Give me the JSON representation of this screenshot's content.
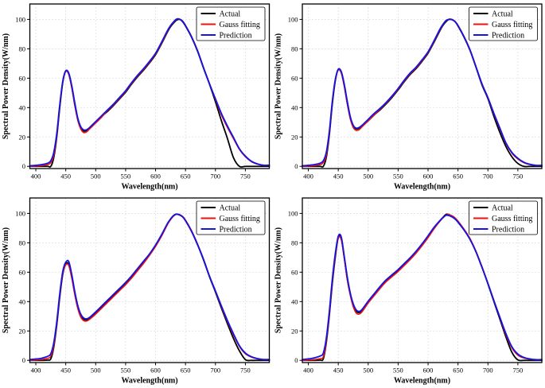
{
  "figure": {
    "xlabel": "Wavelength(nm)",
    "ylabel": "Spectral Power Density(W/nm)",
    "legend_labels": [
      "Actual",
      "Gauss fitting",
      "Prediction"
    ],
    "colors": {
      "actual": "#000000",
      "gauss_fitting": "#ee1111",
      "prediction": "#1414e6",
      "grid": "#d2d2d2",
      "frame": "#000000",
      "background": "#ffffff"
    }
  },
  "chart_data": [
    {
      "id": "top-left",
      "type": "line",
      "title": "",
      "xlabel": "Wavelength(nm)",
      "ylabel": "Spectral Power Density(W/nm)",
      "xlim": [
        390,
        790
      ],
      "ylim": [
        0,
        110
      ],
      "xticks": [
        400,
        450,
        500,
        550,
        600,
        650,
        700,
        750
      ],
      "yticks": [
        0,
        20,
        40,
        60,
        80,
        100
      ],
      "grid": true,
      "legend_position": "upper right",
      "x": [
        380,
        390,
        400,
        410,
        420,
        425,
        430,
        435,
        440,
        445,
        450,
        455,
        460,
        465,
        470,
        475,
        480,
        485,
        490,
        500,
        510,
        520,
        530,
        540,
        550,
        560,
        570,
        580,
        590,
        600,
        610,
        620,
        625,
        630,
        635,
        640,
        645,
        650,
        660,
        670,
        680,
        690,
        700,
        710,
        720,
        730,
        740,
        750,
        760,
        770,
        780
      ],
      "series": [
        {
          "name": "Actual",
          "color": "#000000",
          "values": [
            0,
            0,
            0,
            0,
            0,
            0,
            6,
            20,
            40,
            57,
            65,
            63,
            54,
            42,
            32,
            26.5,
            24,
            24.5,
            26,
            30,
            34,
            37.5,
            41.5,
            46,
            50.5,
            56,
            61,
            65.5,
            70.5,
            76,
            83.5,
            91.5,
            95,
            97.5,
            99.5,
            100,
            98.5,
            95.5,
            88,
            78.5,
            67,
            56,
            44,
            31,
            19,
            6,
            0,
            0,
            0,
            0,
            0
          ]
        },
        {
          "name": "Gauss fitting",
          "color": "#ee1111",
          "values": [
            0,
            0,
            0.2,
            0.5,
            1.2,
            2.5,
            7.5,
            21,
            41,
            57.5,
            64.5,
            62.5,
            53.5,
            42,
            31.5,
            25.5,
            23,
            23.5,
            25.5,
            29.5,
            33.5,
            38,
            42,
            46.5,
            51,
            56.5,
            61.5,
            66,
            71,
            76.5,
            84,
            92,
            95.5,
            98,
            100,
            100.2,
            99,
            96,
            88.5,
            79,
            67.5,
            56.5,
            45.5,
            35,
            26.5,
            19,
            11.5,
            6.5,
            3.2,
            1.5,
            0.7
          ]
        },
        {
          "name": "Prediction",
          "color": "#1414e6",
          "values": [
            0.2,
            0.4,
            0.7,
            1.2,
            2.2,
            3.8,
            9.5,
            22.5,
            42,
            58,
            65,
            63.5,
            55,
            43.5,
            33,
            27,
            24.8,
            25,
            26.5,
            30.5,
            34.5,
            38.5,
            42.5,
            47,
            51.5,
            57,
            62,
            66.5,
            71.5,
            77,
            84.5,
            92.5,
            95.8,
            98.3,
            100.2,
            100.2,
            98.8,
            95.8,
            88.2,
            78.8,
            67.2,
            56.2,
            46,
            36,
            27.5,
            19.8,
            12,
            7,
            3.5,
            1.7,
            0.8
          ]
        }
      ]
    },
    {
      "id": "top-right",
      "type": "line",
      "title": "",
      "xlabel": "Wavelength(nm)",
      "ylabel": "Spectral Power Density(W/nm)",
      "xlim": [
        390,
        790
      ],
      "ylim": [
        0,
        110
      ],
      "xticks": [
        400,
        450,
        500,
        550,
        600,
        650,
        700,
        750
      ],
      "yticks": [
        0,
        20,
        40,
        60,
        80,
        100
      ],
      "grid": true,
      "legend_position": "upper right",
      "x": [
        380,
        390,
        400,
        410,
        420,
        425,
        430,
        435,
        440,
        445,
        450,
        455,
        460,
        465,
        470,
        475,
        480,
        485,
        490,
        500,
        510,
        520,
        530,
        540,
        550,
        560,
        570,
        580,
        590,
        600,
        610,
        620,
        625,
        630,
        635,
        640,
        645,
        650,
        660,
        670,
        680,
        690,
        700,
        710,
        720,
        730,
        740,
        750,
        760,
        770,
        780
      ],
      "series": [
        {
          "name": "Actual",
          "color": "#000000",
          "values": [
            0,
            0,
            0,
            0,
            0,
            0,
            6,
            21,
            42,
            58,
            66,
            64,
            55,
            43,
            33,
            27.5,
            25.5,
            26,
            27.5,
            31,
            35,
            38.5,
            42.5,
            47,
            52,
            57.5,
            62.5,
            66.5,
            71.5,
            77,
            84.5,
            92.5,
            96,
            98.5,
            100,
            99.8,
            98.5,
            95.5,
            88,
            79,
            67.5,
            55.5,
            46,
            34,
            23,
            13.5,
            6.5,
            2,
            0,
            0,
            0
          ]
        },
        {
          "name": "Gauss fitting",
          "color": "#ee1111",
          "values": [
            0,
            0,
            0.2,
            0.5,
            1.2,
            2.5,
            7.5,
            22,
            43,
            58.5,
            65.5,
            63.5,
            54.5,
            43,
            32.5,
            26.5,
            24.5,
            25,
            27,
            31,
            35,
            39,
            43,
            47.5,
            52.5,
            58,
            63,
            67,
            72,
            77.5,
            85,
            93,
            96.5,
            99,
            100.2,
            100,
            98.7,
            96,
            88.5,
            79.5,
            68,
            56,
            46.5,
            35.5,
            25.5,
            15.5,
            9,
            5,
            2.5,
            1.2,
            0.6
          ]
        },
        {
          "name": "Prediction",
          "color": "#1414e6",
          "values": [
            0.2,
            0.4,
            0.7,
            1.2,
            2.2,
            3.8,
            9.5,
            23.5,
            44,
            59,
            66,
            64.5,
            56,
            44.5,
            34,
            28,
            26,
            26.5,
            28,
            32,
            36,
            39.5,
            43.5,
            48,
            53,
            58.5,
            63.5,
            67.5,
            72.5,
            78,
            85.5,
            93.5,
            96.7,
            99.2,
            100,
            99.8,
            98.5,
            95.8,
            88.2,
            79.2,
            67.8,
            56.2,
            46.8,
            36,
            26,
            16,
            9.5,
            5.5,
            2.8,
            1.4,
            0.7
          ]
        }
      ]
    },
    {
      "id": "bottom-left",
      "type": "line",
      "title": "",
      "xlabel": "Wavelength(nm)",
      "ylabel": "Spectral Power Density(W/nm)",
      "xlim": [
        390,
        790
      ],
      "ylim": [
        0,
        110
      ],
      "xticks": [
        400,
        450,
        500,
        550,
        600,
        650,
        700,
        750
      ],
      "yticks": [
        0,
        20,
        40,
        60,
        80,
        100
      ],
      "grid": true,
      "legend_position": "upper right",
      "x": [
        380,
        390,
        400,
        410,
        420,
        425,
        430,
        435,
        440,
        445,
        450,
        455,
        460,
        465,
        470,
        475,
        480,
        485,
        490,
        500,
        510,
        520,
        530,
        540,
        550,
        560,
        570,
        580,
        590,
        600,
        610,
        620,
        625,
        630,
        635,
        640,
        645,
        650,
        660,
        670,
        680,
        690,
        700,
        710,
        720,
        730,
        740,
        750,
        760,
        770,
        780
      ],
      "series": [
        {
          "name": "Actual",
          "color": "#000000",
          "values": [
            0,
            0,
            0,
            0,
            0.2,
            1,
            9,
            24,
            43,
            58.5,
            65.5,
            65.5,
            57,
            45.5,
            36,
            30.5,
            28,
            27.5,
            28.5,
            32,
            36,
            40,
            44,
            48,
            52,
            56.5,
            61.5,
            66.5,
            72,
            78,
            85,
            93,
            96,
            98.5,
            99.5,
            99,
            97.8,
            95.2,
            88,
            79,
            68.5,
            57,
            46.5,
            35.5,
            25,
            15,
            6.5,
            0.5,
            0,
            0,
            0
          ]
        },
        {
          "name": "Gauss fitting",
          "color": "#ee1111",
          "values": [
            0,
            0,
            0.2,
            0.6,
            1.4,
            2.8,
            10,
            25,
            44,
            59,
            65,
            64.5,
            56,
            45,
            35.5,
            29.5,
            27,
            26.8,
            28,
            31.5,
            35.5,
            39.5,
            43.5,
            47.5,
            51.5,
            56,
            61,
            66,
            71.5,
            77.5,
            84.5,
            92.5,
            95.7,
            98.2,
            99.4,
            99.2,
            98,
            95.5,
            88.3,
            79.3,
            69,
            57.5,
            47,
            36.5,
            26.5,
            17.5,
            9.5,
            4.5,
            2.2,
            1,
            0.5
          ]
        },
        {
          "name": "Prediction",
          "color": "#1414e6",
          "values": [
            0.2,
            0.5,
            0.9,
            1.5,
            2.8,
            4.5,
            12,
            26.5,
            45.5,
            60.5,
            66.8,
            67.2,
            58.5,
            47,
            37.5,
            31.5,
            28.8,
            28.3,
            29.3,
            33,
            37,
            41,
            45,
            49,
            53,
            57.5,
            62.5,
            67.5,
            72.5,
            78.5,
            85.5,
            93.2,
            96.2,
            98.5,
            99.5,
            99,
            97.7,
            95,
            87.8,
            78.8,
            68.8,
            57.3,
            47.3,
            37,
            27.2,
            18.2,
            10,
            5,
            2.5,
            1.2,
            0.6
          ]
        }
      ]
    },
    {
      "id": "bottom-right",
      "type": "line",
      "title": "",
      "xlabel": "Wavelength(nm)",
      "ylabel": "Spectral Power Density(W/nm)",
      "xlim": [
        390,
        790
      ],
      "ylim": [
        0,
        110
      ],
      "xticks": [
        400,
        450,
        500,
        550,
        600,
        650,
        700,
        750
      ],
      "yticks": [
        0,
        20,
        40,
        60,
        80,
        100
      ],
      "grid": true,
      "legend_position": "upper right",
      "x": [
        380,
        390,
        400,
        410,
        420,
        425,
        430,
        435,
        440,
        445,
        450,
        455,
        460,
        465,
        470,
        475,
        480,
        485,
        490,
        500,
        510,
        520,
        530,
        540,
        550,
        560,
        570,
        580,
        590,
        600,
        610,
        620,
        625,
        630,
        635,
        640,
        645,
        650,
        660,
        670,
        680,
        690,
        700,
        710,
        720,
        730,
        740,
        750,
        760,
        770,
        780
      ],
      "series": [
        {
          "name": "Actual",
          "color": "#000000",
          "values": [
            0,
            0,
            0,
            0,
            0.2,
            1,
            12,
            30,
            52,
            70,
            83.5,
            83,
            70,
            55.5,
            45,
            37.5,
            33.5,
            32.5,
            34,
            39.5,
            44.5,
            49.5,
            54,
            57.5,
            61,
            65,
            69,
            73.5,
            78.5,
            84,
            90,
            95,
            97.3,
            99.3,
            99.2,
            98,
            96.5,
            94.3,
            89,
            82.5,
            74,
            63.5,
            52,
            40,
            28,
            16,
            5.5,
            0.3,
            0,
            0,
            0
          ]
        },
        {
          "name": "Gauss fitting",
          "color": "#ee1111",
          "values": [
            0,
            0,
            0.2,
            0.5,
            1.2,
            2.5,
            13,
            31,
            53,
            71,
            83.2,
            82,
            69.5,
            55,
            44.5,
            36.5,
            32.2,
            31.5,
            33.2,
            39,
            44,
            49,
            53.5,
            57,
            60.5,
            64.5,
            68.5,
            73,
            78,
            83.5,
            89.5,
            94.8,
            97,
            98.8,
            99.2,
            98.4,
            97,
            94.8,
            89.3,
            83,
            74.3,
            63.8,
            52.5,
            40.8,
            29,
            17.5,
            8.5,
            3.5,
            1.6,
            0.8,
            0.4
          ]
        },
        {
          "name": "Prediction",
          "color": "#1414e6",
          "values": [
            0.3,
            0.6,
            1,
            1.7,
            3,
            5,
            15,
            33,
            55,
            72.5,
            84.5,
            84,
            71,
            57,
            46,
            38.5,
            34.3,
            33.3,
            34.8,
            40.3,
            45.3,
            50.3,
            54.8,
            58.3,
            61.8,
            65.8,
            69.8,
            74.3,
            79.3,
            84.8,
            90.5,
            95.2,
            97.2,
            98.7,
            98.5,
            97.6,
            96.2,
            94,
            88.7,
            82.3,
            73.8,
            63.3,
            52.3,
            40.5,
            29.3,
            18.3,
            9.3,
            4.3,
            2,
            1,
            0.5
          ]
        }
      ]
    }
  ]
}
